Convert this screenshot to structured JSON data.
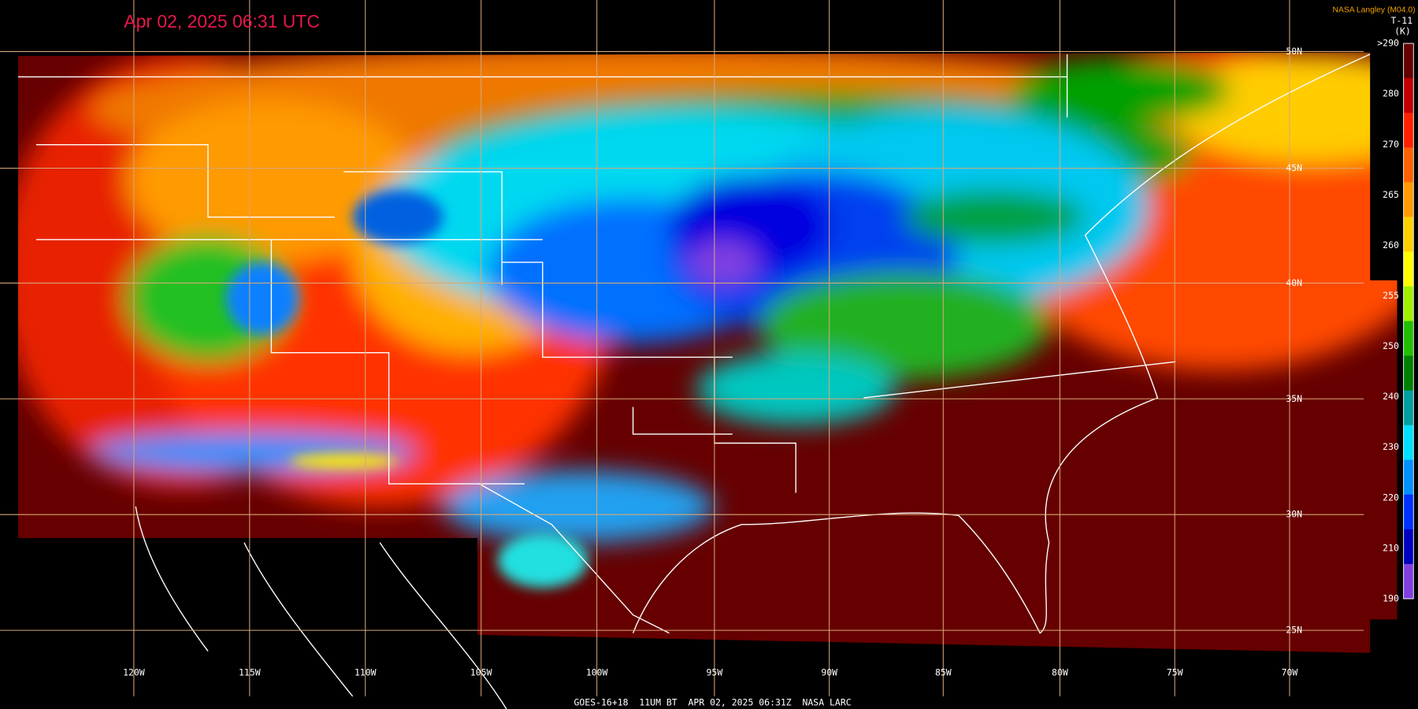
{
  "header": {
    "title": "Apr 02, 2025 06:31 UTC",
    "credit": "NASA Langley (M04.0)",
    "channel": "T-11",
    "unit": "(K)"
  },
  "colorbar": {
    "labels": [
      ">290",
      "280",
      "270",
      "265",
      "260",
      "255",
      "250",
      "240",
      "230",
      "220",
      "210",
      "190"
    ]
  },
  "longitudes": [
    "120W",
    "115W",
    "110W",
    "105W",
    "100W",
    "95W",
    "90W",
    "85W",
    "80W",
    "75W",
    "70W"
  ],
  "latitudes": [
    "50N",
    "45N",
    "40N",
    "35N",
    "30N",
    "25N"
  ],
  "footer": "GOES-16+18  11UM BT  APR 02, 2025 06:31Z  NASA LARC"
}
